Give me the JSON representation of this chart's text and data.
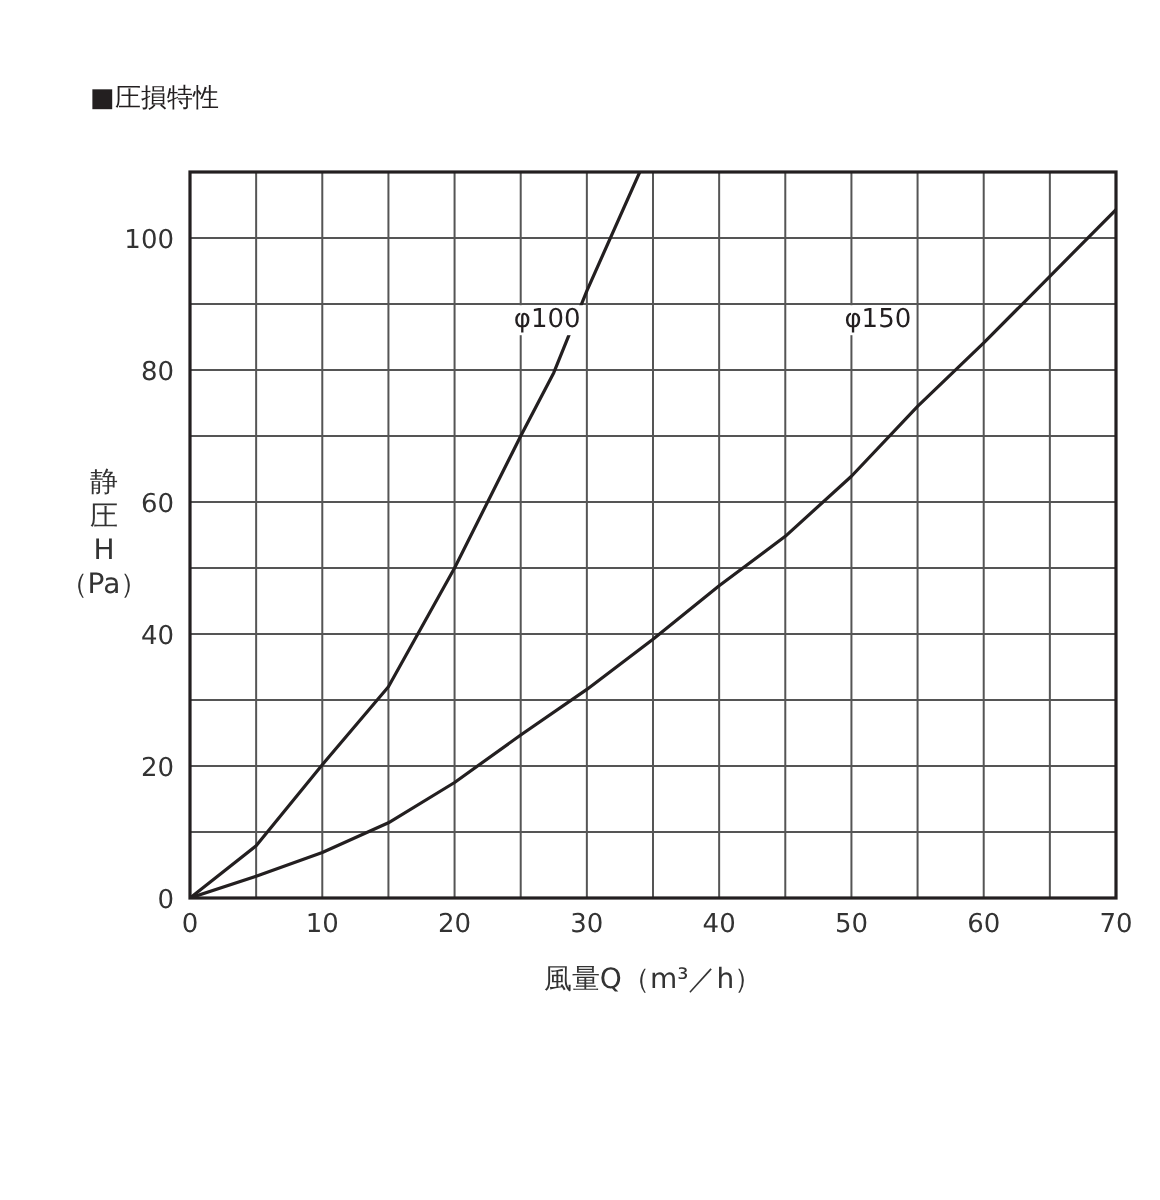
{
  "chart_data": {
    "type": "line",
    "title": "■圧損特性",
    "xlabel": "風量Q（m³／h）",
    "ylabel": "静圧H（Pa）",
    "xlim": [
      0,
      70
    ],
    "ylim": [
      0,
      110
    ],
    "xticks": [
      0,
      {
        "value": 5,
        "label": null
      },
      10,
      {
        "value": 15,
        "label": null
      },
      20,
      {
        "value": 25,
        "label": null
      },
      30,
      {
        "value": 35,
        "label": null
      },
      40,
      {
        "value": 45,
        "label": null
      },
      50,
      {
        "value": 55,
        "label": null
      },
      60,
      {
        "value": 65,
        "label": null
      },
      70
    ],
    "yticks": [
      0,
      {
        "value": 10,
        "label": null
      },
      20,
      {
        "value": 30,
        "label": null
      },
      40,
      {
        "value": 50,
        "label": null
      },
      60,
      {
        "value": 70,
        "label": null
      },
      80,
      {
        "value": 90,
        "label": null
      },
      100,
      {
        "value": 110,
        "label": null
      }
    ],
    "grid": true,
    "legend": false,
    "marker": "none",
    "line_style": "solid",
    "series": [
      {
        "name": "φ100",
        "color": "#231f20",
        "x": [
          0,
          5,
          10,
          15,
          20,
          25,
          27.5,
          30,
          34
        ],
        "values": [
          0,
          7.9,
          20.2,
          32,
          50,
          70,
          79.6,
          92,
          110
        ]
      },
      {
        "name": "φ150",
        "color": "#231f20",
        "x": [
          0,
          5,
          10,
          15,
          20,
          25,
          30,
          35,
          40,
          45,
          50,
          55,
          60,
          65,
          70
        ],
        "values": [
          0,
          3.3,
          6.9,
          11.4,
          17.5,
          24.7,
          31.6,
          39.2,
          47.3,
          54.8,
          63.9,
          74.5,
          84.1,
          94.2,
          104.3
        ]
      }
    ]
  }
}
